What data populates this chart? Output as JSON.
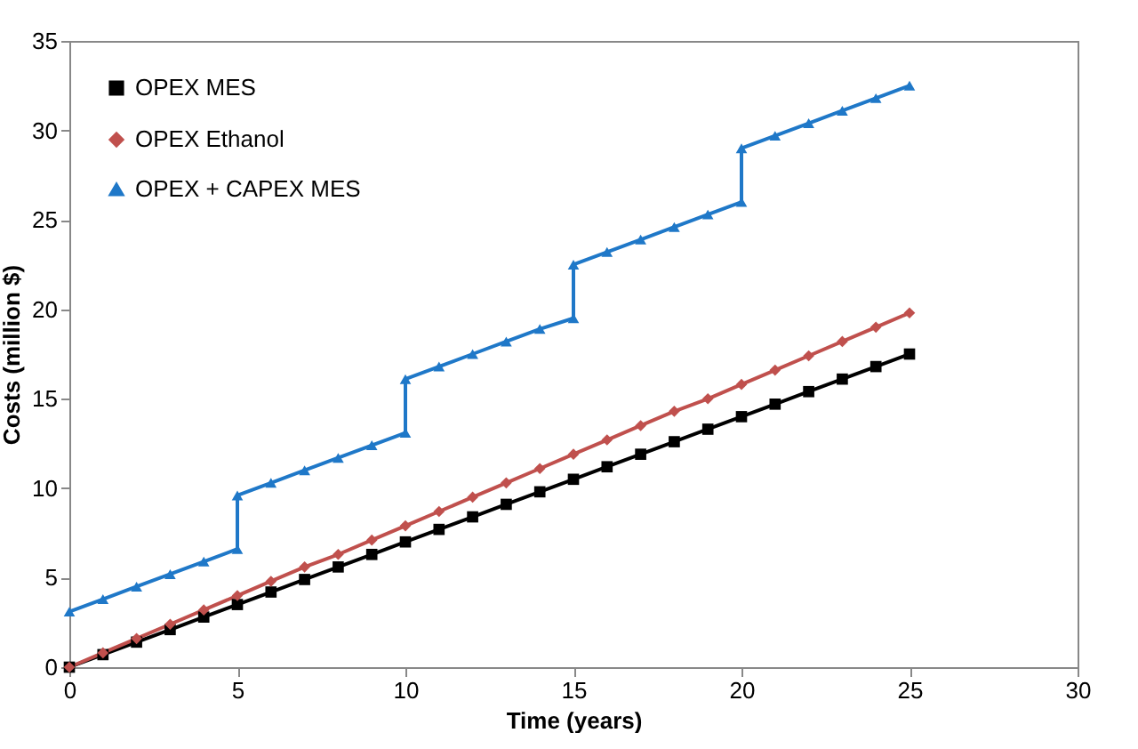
{
  "chart_data": {
    "type": "line",
    "xlabel": "Time (years)",
    "ylabel": "Costs (million $)",
    "xlim": [
      0,
      30
    ],
    "xticks": [
      0,
      5,
      10,
      15,
      20,
      25,
      30
    ],
    "ylim": [
      0,
      35
    ],
    "yticks": [
      0,
      5,
      10,
      15,
      20,
      25,
      30,
      35
    ],
    "grid": false,
    "legend": "top left",
    "line_style": "solid",
    "series": [
      {
        "name": "OPEX MES",
        "color": "#000000",
        "marker": "square",
        "x": [
          0,
          1,
          2,
          3,
          4,
          5,
          6,
          7,
          8,
          9,
          10,
          11,
          12,
          13,
          14,
          15,
          16,
          17,
          18,
          19,
          20,
          21,
          22,
          23,
          24,
          25
        ],
        "values": [
          0,
          0.7,
          1.4,
          2.1,
          2.8,
          3.5,
          4.2,
          4.9,
          5.6,
          6.3,
          7.0,
          7.7,
          8.4,
          9.1,
          9.8,
          10.5,
          11.2,
          11.9,
          12.6,
          13.3,
          14.0,
          14.7,
          15.4,
          16.1,
          16.8,
          17.5
        ]
      },
      {
        "name": "OPEX Ethanol",
        "color": "#c0504d",
        "marker": "diamond",
        "x": [
          0,
          1,
          2,
          3,
          4,
          5,
          6,
          7,
          8,
          9,
          10,
          11,
          12,
          13,
          14,
          15,
          16,
          17,
          18,
          19,
          20,
          21,
          22,
          23,
          24,
          25
        ],
        "values": [
          0,
          0.8,
          1.6,
          2.4,
          3.2,
          4.0,
          4.8,
          5.6,
          6.3,
          7.1,
          7.9,
          8.7,
          9.5,
          10.3,
          11.1,
          11.9,
          12.7,
          13.5,
          14.3,
          15.0,
          15.8,
          16.6,
          17.4,
          18.2,
          19.0,
          19.8
        ]
      },
      {
        "name": "OPEX + CAPEX MES",
        "color": "#1f78c8",
        "marker": "triangle",
        "x": [
          0,
          1,
          2,
          3,
          4,
          5,
          5,
          6,
          7,
          8,
          9,
          10,
          10,
          11,
          12,
          13,
          14,
          15,
          15,
          16,
          17,
          18,
          19,
          20,
          20,
          21,
          22,
          23,
          24,
          25
        ],
        "values": [
          3.1,
          3.8,
          4.5,
          5.2,
          5.9,
          6.6,
          9.6,
          10.3,
          11.0,
          11.7,
          12.4,
          13.1,
          16.1,
          16.8,
          17.5,
          18.2,
          18.9,
          19.5,
          22.5,
          23.2,
          23.9,
          24.6,
          25.3,
          26.0,
          29.0,
          29.7,
          30.4,
          31.1,
          31.8,
          32.5
        ]
      }
    ]
  }
}
